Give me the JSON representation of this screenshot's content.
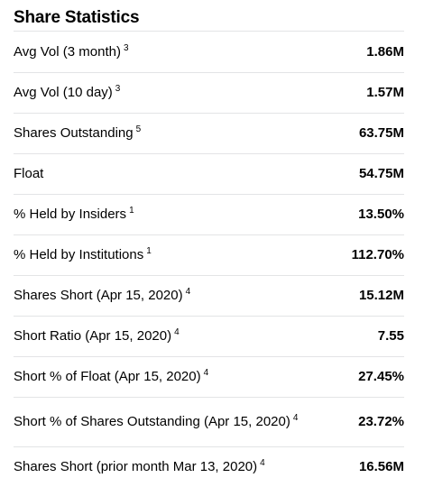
{
  "section": {
    "title": "Share Statistics"
  },
  "rows": [
    {
      "label": "Avg Vol (3 month)",
      "footnote": "3",
      "value": "1.86M"
    },
    {
      "label": "Avg Vol (10 day)",
      "footnote": "3",
      "value": "1.57M"
    },
    {
      "label": "Shares Outstanding",
      "footnote": "5",
      "value": "63.75M"
    },
    {
      "label": "Float",
      "footnote": "",
      "value": "54.75M"
    },
    {
      "label": "% Held by Insiders",
      "footnote": "1",
      "value": "13.50%"
    },
    {
      "label": "% Held by Institutions",
      "footnote": "1",
      "value": "112.70%"
    },
    {
      "label": "Shares Short (Apr 15, 2020)",
      "footnote": "4",
      "value": "15.12M"
    },
    {
      "label": "Short Ratio (Apr 15, 2020)",
      "footnote": "4",
      "value": "7.55"
    },
    {
      "label": "Short % of Float (Apr 15, 2020)",
      "footnote": "4",
      "value": "27.45%"
    },
    {
      "label": "Short % of Shares Outstanding (Apr 15, 2020)",
      "footnote": "4",
      "value": "23.72%"
    },
    {
      "label": "Shares Short (prior month Mar 13, 2020)",
      "footnote": "4",
      "value": "16.56M"
    }
  ]
}
